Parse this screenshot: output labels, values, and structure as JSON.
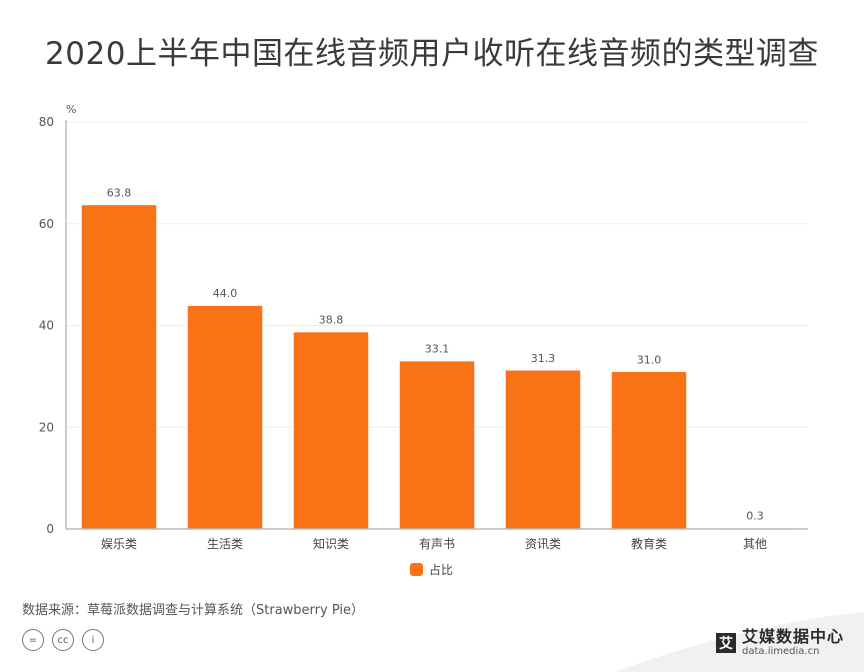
{
  "title": "2020上半年中国在线音频用户收听在线音频的类型调查",
  "source_text": "数据来源：草莓派数据调查与计算系统（Strawberry Pie）",
  "brand": {
    "mark": "艾",
    "name": "艾媒数据中心",
    "url": "data.iimedia.cn"
  },
  "license_icons": [
    "=",
    "cc",
    "i"
  ],
  "colors": {
    "bar": "#F97316",
    "bar_stroke": "#ffffff",
    "grid": "#ececec",
    "axis": "#999999"
  },
  "chart_data": {
    "type": "bar",
    "title": "2020上半年中国在线音频用户收听在线音频的类型调查",
    "ylabel": "%",
    "ylim": [
      0,
      80
    ],
    "yticks": [
      0,
      20,
      40,
      60,
      80
    ],
    "grid": true,
    "legend": "bottom",
    "categories": [
      "娱乐类",
      "生活类",
      "知识类",
      "有声书",
      "资讯类",
      "教育类",
      "其他"
    ],
    "series": [
      {
        "name": "占比",
        "values": [
          63.8,
          44.0,
          38.8,
          33.1,
          31.3,
          31.0,
          0.3
        ]
      }
    ],
    "data_labels": [
      "63.8",
      "44.0",
      "38.8",
      "33.1",
      "31.3",
      "31.0",
      "0.3"
    ]
  }
}
